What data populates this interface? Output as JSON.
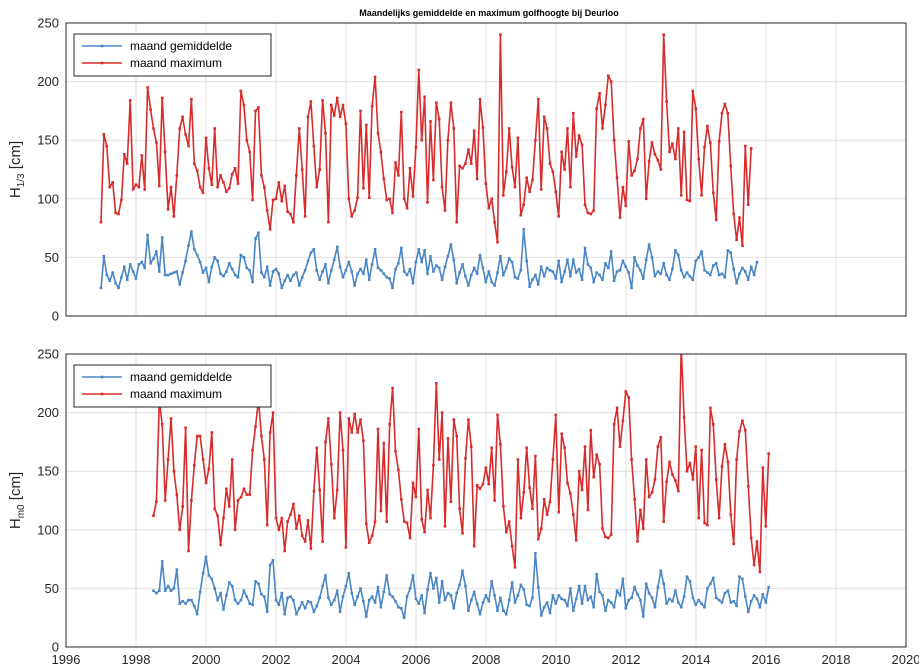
{
  "title": "Maandelijks gemiddelde en maximum golfhoogte bij Deurloo",
  "colors": {
    "mean": "#4a86c5",
    "max": "#d92b2b",
    "grid": "#e0e0e0",
    "axis": "#262626"
  },
  "x_ticks": [
    "1996",
    "1998",
    "2000",
    "2002",
    "2004",
    "2006",
    "2008",
    "2010",
    "2012",
    "2014",
    "2016",
    "2018",
    "2020"
  ],
  "chart_data": [
    {
      "type": "line",
      "ylabel_main": "H",
      "ylabel_sub": "1/3",
      "ylabel_unit": " [cm]",
      "xlim": [
        1996,
        2020
      ],
      "ylim": [
        0,
        250
      ],
      "y_ticks": [
        "0",
        "50",
        "100",
        "150",
        "200",
        "250"
      ],
      "grid": true,
      "legend_position": "top-left",
      "series": [
        {
          "name": "maand gemiddelde",
          "color": "#4a86c5",
          "x_start": 1997.0,
          "x_step": 0.0833,
          "values": [
            24,
            51,
            35,
            30,
            37,
            28,
            24,
            33,
            42,
            31,
            44,
            38,
            32,
            44,
            46,
            41,
            69,
            45,
            49,
            55,
            38,
            67,
            35,
            35,
            36,
            37,
            38,
            27,
            37,
            47,
            60,
            72,
            57,
            52,
            46,
            37,
            41,
            29,
            42,
            50,
            47,
            36,
            34,
            38,
            45,
            40,
            35,
            33,
            52,
            50,
            41,
            39,
            29,
            66,
            71,
            37,
            33,
            42,
            26,
            38,
            40,
            36,
            24,
            30,
            35,
            30,
            35,
            37,
            26,
            33,
            39,
            47,
            54,
            57,
            39,
            31,
            38,
            44,
            28,
            39,
            48,
            59,
            42,
            33,
            39,
            46,
            38,
            26,
            36,
            40,
            36,
            48,
            31,
            44,
            57,
            41,
            39,
            36,
            33,
            32,
            24,
            40,
            45,
            58,
            38,
            35,
            40,
            28,
            46,
            57,
            46,
            56,
            36,
            51,
            38,
            43,
            41,
            31,
            42,
            51,
            61,
            48,
            28,
            37,
            44,
            34,
            26,
            35,
            41,
            36,
            52,
            41,
            29,
            38,
            29,
            26,
            37,
            51,
            35,
            41,
            49,
            46,
            33,
            32,
            39,
            74,
            47,
            25,
            31,
            35,
            27,
            42,
            34,
            41,
            39,
            38,
            32,
            47,
            29,
            38,
            48,
            34,
            48,
            37,
            40,
            31,
            58,
            44,
            41,
            29,
            37,
            35,
            31,
            45,
            41,
            55,
            30,
            38,
            39,
            47,
            42,
            37,
            24,
            50,
            43,
            39,
            32,
            48,
            61,
            50,
            34,
            38,
            36,
            45,
            35,
            31,
            40,
            56,
            52,
            39,
            33,
            37,
            34,
            31,
            47,
            50,
            55,
            39,
            37,
            35,
            43,
            45,
            35,
            36,
            33,
            56,
            54,
            40,
            28,
            36,
            41,
            38,
            31,
            42,
            35,
            46
          ]
        },
        {
          "name": "maand maximum",
          "color": "#d92b2b",
          "x_start": 1997.0,
          "x_step": 0.0833,
          "values": [
            80,
            155,
            145,
            110,
            114,
            88,
            87,
            99,
            138,
            130,
            184,
            108,
            112,
            110,
            137,
            108,
            195,
            176,
            160,
            148,
            111,
            186,
            140,
            91,
            110,
            85,
            120,
            160,
            170,
            155,
            145,
            185,
            130,
            124,
            110,
            105,
            152,
            126,
            112,
            160,
            110,
            120,
            114,
            106,
            109,
            121,
            126,
            113,
            192,
            180,
            150,
            140,
            99,
            175,
            178,
            120,
            110,
            90,
            74,
            99,
            100,
            114,
            98,
            111,
            89,
            87,
            80,
            120,
            160,
            125,
            85,
            170,
            183,
            145,
            110,
            125,
            184,
            156,
            80,
            180,
            171,
            186,
            170,
            180,
            164,
            100,
            85,
            90,
            101,
            175,
            109,
            163,
            101,
            179,
            204,
            156,
            140,
            117,
            99,
            100,
            88,
            131,
            120,
            174,
            100,
            92,
            126,
            102,
            144,
            210,
            150,
            187,
            97,
            166,
            116,
            182,
            168,
            110,
            90,
            150,
            182,
            160,
            80,
            128,
            126,
            130,
            142,
            130,
            158,
            117,
            185,
            161,
            113,
            92,
            100,
            80,
            63,
            240,
            103,
            123,
            160,
            127,
            110,
            152,
            86,
            95,
            118,
            106,
            116,
            150,
            185,
            108,
            170,
            160,
            130,
            123,
            106,
            85,
            140,
            125,
            160,
            110,
            173,
            136,
            154,
            146,
            95,
            88,
            87,
            90,
            177,
            190,
            160,
            180,
            205,
            200,
            150,
            118,
            84,
            110,
            94,
            149,
            120,
            124,
            134,
            160,
            168,
            100,
            132,
            148,
            138,
            133,
            125,
            240,
            183,
            140,
            147,
            134,
            160,
            103,
            157,
            99,
            98,
            192,
            177,
            134,
            103,
            144,
            162,
            148,
            105,
            82,
            149,
            173,
            181,
            173,
            128,
            87,
            65,
            84,
            60,
            145,
            95,
            143
          ]
        }
      ]
    },
    {
      "type": "line",
      "ylabel_main": "H",
      "ylabel_sub": "m0",
      "ylabel_unit": " [cm]",
      "xlim": [
        1996,
        2020
      ],
      "ylim": [
        0,
        250
      ],
      "y_ticks": [
        "0",
        "50",
        "100",
        "150",
        "200",
        "250"
      ],
      "grid": true,
      "legend_position": "top-left",
      "series": [
        {
          "name": "maand gemiddelde",
          "color": "#4a86c5",
          "x_start": 1998.5,
          "x_step": 0.0833,
          "values": [
            48,
            46,
            48,
            73,
            48,
            52,
            48,
            50,
            66,
            37,
            39,
            37,
            40,
            40,
            35,
            28,
            47,
            63,
            77,
            61,
            58,
            50,
            40,
            46,
            32,
            44,
            55,
            52,
            40,
            37,
            40,
            48,
            43,
            37,
            36,
            56,
            54,
            45,
            43,
            30,
            70,
            74,
            40,
            36,
            46,
            28,
            42,
            43,
            40,
            28,
            33,
            38,
            33,
            39,
            38,
            30,
            35,
            42,
            52,
            61,
            42,
            36,
            40,
            48,
            30,
            43,
            52,
            63,
            46,
            36,
            43,
            50,
            39,
            26,
            40,
            43,
            38,
            51,
            34,
            47,
            61,
            45,
            43,
            39,
            34,
            33,
            25,
            43,
            50,
            61,
            41,
            37,
            44,
            29,
            49,
            63,
            50,
            59,
            38,
            56,
            40,
            46,
            44,
            33,
            46,
            53,
            65,
            52,
            31,
            40,
            47,
            37,
            28,
            38,
            44,
            39,
            56,
            44,
            31,
            42,
            31,
            28,
            40,
            55,
            38,
            44,
            53,
            49,
            36,
            35,
            42,
            80,
            51,
            27,
            34,
            38,
            29,
            44,
            37,
            44,
            41,
            40,
            35,
            50,
            31,
            41,
            52,
            37,
            52,
            40,
            43,
            34,
            62,
            47,
            44,
            31,
            40,
            38,
            34,
            48,
            44,
            58,
            33,
            40,
            42,
            51,
            45,
            40,
            26,
            54,
            46,
            42,
            34,
            51,
            65,
            54,
            37,
            41,
            39,
            48,
            38,
            34,
            43,
            60,
            56,
            42,
            36,
            40,
            37,
            34,
            50,
            54,
            59,
            42,
            40,
            38,
            46,
            48,
            38,
            39,
            35,
            60,
            58,
            43,
            30,
            39,
            44,
            41,
            34,
            45,
            38,
            51
          ]
        },
        {
          "name": "maand maximum",
          "color": "#d92b2b",
          "x_start": 1998.5,
          "x_step": 0.0833,
          "values": [
            112,
            124,
            210,
            190,
            125,
            160,
            195,
            150,
            130,
            100,
            120,
            187,
            82,
            125,
            155,
            180,
            180,
            160,
            140,
            152,
            183,
            118,
            112,
            87,
            110,
            135,
            120,
            160,
            100,
            125,
            128,
            135,
            130,
            130,
            168,
            188,
            211,
            180,
            160,
            104,
            183,
            200,
            110,
            100,
            110,
            82,
            107,
            113,
            122,
            101,
            112,
            95,
            90,
            108,
            84,
            133,
            170,
            134,
            90,
            175,
            195,
            156,
            110,
            134,
            200,
            168,
            85,
            195,
            183,
            199,
            183,
            194,
            176,
            105,
            89,
            95,
            107,
            186,
            116,
            174,
            107,
            190,
            221,
            167,
            151,
            126,
            107,
            106,
            93,
            140,
            128,
            186,
            109,
            98,
            134,
            110,
            155,
            225,
            160,
            200,
            103,
            178,
            124,
            194,
            180,
            118,
            97,
            161,
            194,
            171,
            86,
            138,
            135,
            139,
            153,
            139,
            170,
            125,
            198,
            173,
            120,
            98,
            107,
            86,
            68,
            160,
            110,
            132,
            170,
            136,
            118,
            163,
            92,
            101,
            126,
            113,
            124,
            160,
            198,
            115,
            182,
            170,
            140,
            131,
            113,
            91,
            150,
            134,
            171,
            117,
            185,
            145,
            164,
            156,
            101,
            94,
            93,
            96,
            190,
            204,
            171,
            193,
            218,
            213,
            160,
            126,
            90,
            117,
            101,
            160,
            128,
            132,
            143,
            171,
            179,
            107,
            141,
            158,
            147,
            142,
            133,
            256,
            196,
            150,
            157,
            143,
            171,
            110,
            168,
            106,
            104,
            204,
            190,
            143,
            110,
            154,
            173,
            158,
            113,
            88,
            160,
            184,
            193,
            185,
            137,
            93,
            70,
            90,
            64,
            153,
            103,
            165
          ]
        }
      ]
    }
  ]
}
